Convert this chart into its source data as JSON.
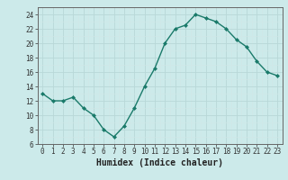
{
  "x": [
    0,
    1,
    2,
    3,
    4,
    5,
    6,
    7,
    8,
    9,
    10,
    11,
    12,
    13,
    14,
    15,
    16,
    17,
    18,
    19,
    20,
    21,
    22,
    23
  ],
  "y": [
    13,
    12,
    12,
    12.5,
    11,
    10,
    8,
    7,
    8.5,
    11,
    14,
    16.5,
    20,
    22,
    22.5,
    24,
    23.5,
    23,
    22,
    20.5,
    19.5,
    17.5,
    16,
    15.5
  ],
  "line_color": "#1a7a6a",
  "marker": "D",
  "marker_size": 2.0,
  "bg_color": "#cceaea",
  "grid_major_color": "#b8d8d8",
  "grid_minor_color": "#d0e8e8",
  "xlabel": "Humidex (Indice chaleur)",
  "ylim": [
    6,
    25
  ],
  "xlim": [
    -0.5,
    23.5
  ],
  "yticks": [
    6,
    8,
    10,
    12,
    14,
    16,
    18,
    20,
    22,
    24
  ],
  "xticks": [
    0,
    1,
    2,
    3,
    4,
    5,
    6,
    7,
    8,
    9,
    10,
    11,
    12,
    13,
    14,
    15,
    16,
    17,
    18,
    19,
    20,
    21,
    22,
    23
  ],
  "tick_fontsize": 5.5,
  "xlabel_fontsize": 7.0
}
